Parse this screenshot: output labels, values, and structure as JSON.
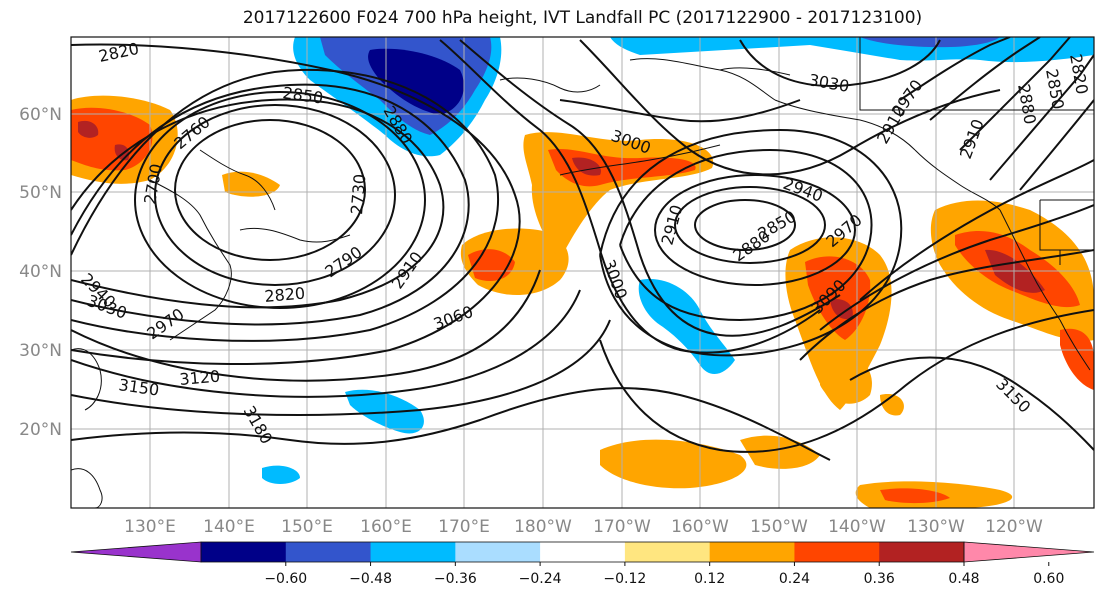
{
  "title": "2017122600 F024 700 hPa height, IVT Landfall PC (2017122900 - 2017123100)",
  "lat_labels": [
    "60°N",
    "50°N",
    "40°N",
    "30°N",
    "20°N"
  ],
  "lon_labels": [
    "130°E",
    "140°E",
    "150°E",
    "160°E",
    "170°E",
    "180°W",
    "170°W",
    "160°W",
    "150°W",
    "140°W",
    "130°W",
    "120°W"
  ],
  "colorbar": {
    "colors": [
      "#9933cc",
      "#000088",
      "#3355cc",
      "#00bbff",
      "#aaddff",
      "#ffffff",
      "#ffe680",
      "#ffa500",
      "#ff4500",
      "#b22222",
      "#ff88aa"
    ],
    "tick_labels": [
      "−0.60",
      "−0.48",
      "−0.36",
      "−0.24",
      "−0.12",
      "0.12",
      "0.24",
      "0.36",
      "0.48",
      "0.60"
    ]
  },
  "contour_labels": [
    "2820",
    "2850",
    "2760",
    "2700",
    "2790",
    "2820",
    "2730",
    "2880",
    "2910",
    "3060",
    "3000",
    "3030",
    "3000",
    "2940",
    "2910",
    "2880",
    "2850",
    "2970",
    "3090",
    "3120",
    "3150",
    "3180",
    "3150",
    "2910",
    "2880",
    "2850",
    "2820",
    "2910",
    "2970",
    "2940",
    "3030",
    "2970"
  ]
}
